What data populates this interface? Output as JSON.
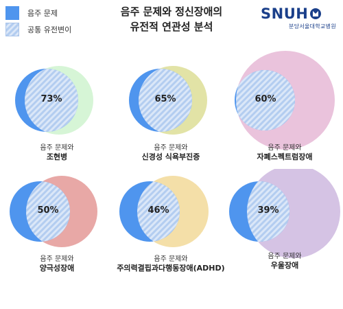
{
  "legend": {
    "items": [
      {
        "label": "음주 문제"
      },
      {
        "label": "공통 유전변이"
      }
    ]
  },
  "title": {
    "line1": "음주 문제와 정신장애의",
    "line2": "유전적 연관성 분석"
  },
  "logo": {
    "word": "SNUH",
    "sub": "분당서울대학교병원"
  },
  "colors": {
    "alcohol": "#4f95ee",
    "hatch": "#b3cdf0"
  },
  "panels": [
    {
      "percent": "73%",
      "value": 73,
      "caption_line1": "음주 문제와",
      "caption_line2": "조현병",
      "color": "#d6f5d6"
    },
    {
      "percent": "65%",
      "value": 65,
      "caption_line1": "음주 문제와",
      "caption_line2": "신경성 식욕부진증",
      "color": "#e2e3a6"
    },
    {
      "percent": "60%",
      "value": 60,
      "caption_line1": "음주 문제와",
      "caption_line2": "자폐스펙트럼장애",
      "color": "#eac3dc"
    },
    {
      "percent": "50%",
      "value": 50,
      "caption_line1": "음주 문제와",
      "caption_line2": "양극성장애",
      "color": "#e8a8a6"
    },
    {
      "percent": "46%",
      "value": 46,
      "caption_line1": "음주 문제와",
      "caption_line2": "주의력결핍과다행동장애(ADHD)",
      "color": "#f4dfa8"
    },
    {
      "percent": "39%",
      "value": 39,
      "caption_line1": "음주 문제와",
      "caption_line2": "우울장애",
      "color": "#d5c3e4"
    }
  ]
}
